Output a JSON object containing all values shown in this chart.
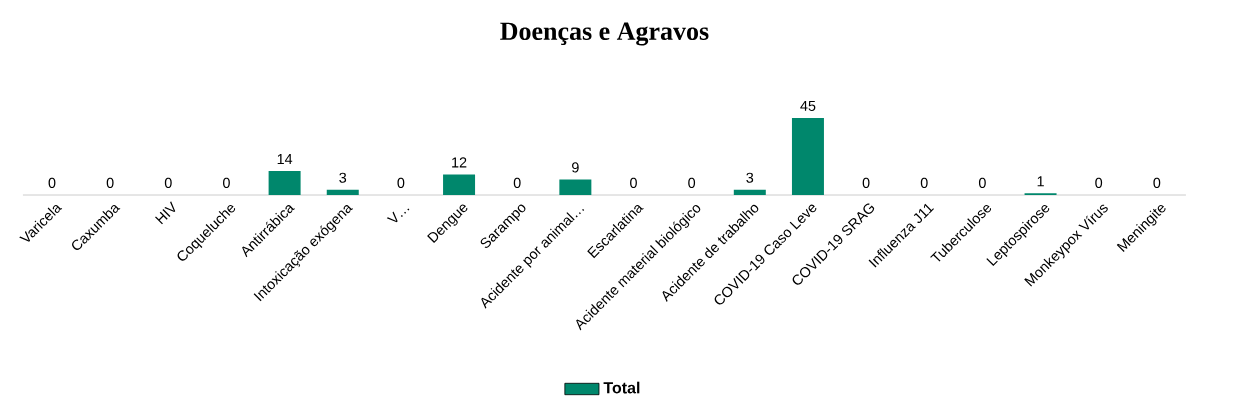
{
  "chart_data": {
    "type": "bar",
    "title": "Doenças e Agravos",
    "categories": [
      "Varicela",
      "Caxumba",
      "HIV",
      "Coqueluche",
      "Antirrábica",
      "Intoxicação exógena",
      "V…",
      "Dengue",
      "Sarampo",
      "Acidente por animal…",
      "Escarlatina",
      "Acidente material biológico",
      "Acidente de trabalho",
      "COVID-19 Caso Leve",
      "COVID-19 SRAG",
      "Influenza J11",
      "Tuberculose",
      "Leptospirose",
      "Monkeypox Vírus",
      "Meningite"
    ],
    "series": [
      {
        "name": "Total",
        "color": "#00876c",
        "values": [
          0,
          0,
          0,
          0,
          14,
          3,
          0,
          12,
          0,
          9,
          0,
          0,
          3,
          45,
          0,
          0,
          0,
          1,
          0,
          0
        ]
      }
    ],
    "data_labels": true,
    "legend": "bottom"
  }
}
